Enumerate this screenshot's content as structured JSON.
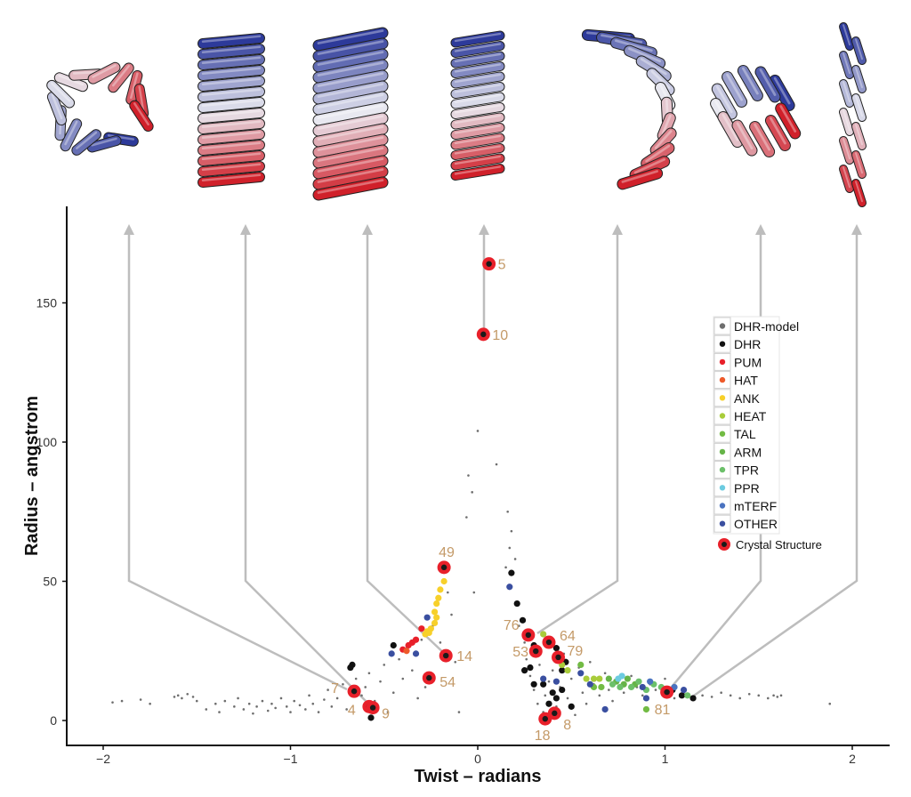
{
  "chart_data": {
    "type": "scatter",
    "xlabel": "Twist – radians",
    "ylabel": "Radius – angstrom",
    "xlim": [
      -2.2,
      2.2
    ],
    "ylim": [
      -8,
      185
    ],
    "xticks": [
      -2,
      -1,
      0,
      1,
      2
    ],
    "yticks": [
      0,
      50,
      100,
      150
    ],
    "grid": false,
    "legend_position": "right",
    "legend": [
      {
        "name": "DHR-model",
        "color": "#6e6e6e"
      },
      {
        "name": "DHR",
        "color": "#111111"
      },
      {
        "name": "PUM",
        "color": "#e8202a"
      },
      {
        "name": "HAT",
        "color": "#ee5a2a"
      },
      {
        "name": "ANK",
        "color": "#f7d02a"
      },
      {
        "name": "HEAT",
        "color": "#a9cc3a"
      },
      {
        "name": "TAL",
        "color": "#72bb44"
      },
      {
        "name": "ARM",
        "color": "#66b448"
      },
      {
        "name": "TPR",
        "color": "#6cc06a"
      },
      {
        "name": "PPR",
        "color": "#6ccbe0"
      },
      {
        "name": "mTERF",
        "color": "#4a73c0"
      },
      {
        "name": "OTHER",
        "color": "#3a4fa0"
      }
    ],
    "crystal_legend": "Crystal Structure",
    "series": [
      {
        "name": "DHR-model",
        "points": [
          [
            -1.95,
            6.5
          ],
          [
            -1.9,
            7
          ],
          [
            -1.8,
            7.5
          ],
          [
            -1.75,
            6
          ],
          [
            -1.62,
            8.5
          ],
          [
            -1.6,
            9
          ],
          [
            -1.58,
            8
          ],
          [
            -1.55,
            9.5
          ],
          [
            -1.52,
            8.5
          ],
          [
            -1.5,
            7
          ],
          [
            -1.45,
            4
          ],
          [
            -1.4,
            6
          ],
          [
            -1.38,
            3
          ],
          [
            -1.35,
            7
          ],
          [
            -1.3,
            5
          ],
          [
            -1.28,
            8
          ],
          [
            -1.25,
            4
          ],
          [
            -1.22,
            6
          ],
          [
            -1.2,
            2.5
          ],
          [
            -1.18,
            5
          ],
          [
            -1.15,
            7
          ],
          [
            -1.12,
            3.5
          ],
          [
            -1.1,
            6
          ],
          [
            -1.08,
            4.5
          ],
          [
            -1.05,
            8
          ],
          [
            -1.02,
            5
          ],
          [
            -1.0,
            3
          ],
          [
            -0.98,
            7
          ],
          [
            -0.95,
            5.5
          ],
          [
            -0.92,
            4
          ],
          [
            -0.9,
            9
          ],
          [
            -0.88,
            6
          ],
          [
            -0.85,
            3
          ],
          [
            -0.82,
            7.5
          ],
          [
            -0.8,
            11
          ],
          [
            -0.78,
            5
          ],
          [
            -0.75,
            8
          ],
          [
            -0.72,
            13
          ],
          [
            -0.7,
            4
          ],
          [
            -0.65,
            15
          ],
          [
            -0.62,
            9
          ],
          [
            -0.6,
            12
          ],
          [
            -0.58,
            17
          ],
          [
            -0.55,
            7
          ],
          [
            -0.52,
            14
          ],
          [
            -0.5,
            20
          ],
          [
            -0.48,
            3
          ],
          [
            -0.45,
            10
          ],
          [
            -0.42,
            22
          ],
          [
            -0.4,
            15
          ],
          [
            -0.38,
            26
          ],
          [
            -0.35,
            18
          ],
          [
            -0.32,
            8
          ],
          [
            -0.3,
            29
          ],
          [
            -0.28,
            12
          ],
          [
            -0.24,
            34
          ],
          [
            -0.2,
            28
          ],
          [
            -0.16,
            46
          ],
          [
            -0.14,
            38
          ],
          [
            -0.12,
            21
          ],
          [
            -0.1,
            3
          ],
          [
            0.0,
            104
          ],
          [
            -0.05,
            88
          ],
          [
            -0.03,
            82
          ],
          [
            -0.06,
            73
          ],
          [
            0.1,
            92
          ],
          [
            -0.02,
            46
          ],
          [
            0.16,
            75
          ],
          [
            0.18,
            68
          ],
          [
            0.17,
            62
          ],
          [
            0.2,
            58
          ],
          [
            0.15,
            55
          ],
          [
            0.22,
            34
          ],
          [
            0.25,
            28
          ],
          [
            0.26,
            22
          ],
          [
            0.28,
            16
          ],
          [
            0.3,
            11
          ],
          [
            0.32,
            6
          ],
          [
            0.33,
            20
          ],
          [
            0.35,
            3
          ],
          [
            0.36,
            9
          ],
          [
            0.38,
            14
          ],
          [
            0.4,
            18
          ],
          [
            0.42,
            5
          ],
          [
            0.44,
            12
          ],
          [
            0.46,
            24
          ],
          [
            0.48,
            8
          ],
          [
            0.5,
            15
          ],
          [
            0.52,
            2
          ],
          [
            0.54,
            19
          ],
          [
            0.56,
            10
          ],
          [
            0.58,
            6
          ],
          [
            0.6,
            21
          ],
          [
            0.62,
            13
          ],
          [
            0.65,
            9
          ],
          [
            0.68,
            17
          ],
          [
            0.7,
            11
          ],
          [
            0.72,
            7
          ],
          [
            0.75,
            14
          ],
          [
            0.78,
            10
          ],
          [
            0.82,
            16
          ],
          [
            0.85,
            12
          ],
          [
            0.88,
            9
          ],
          [
            0.92,
            13
          ],
          [
            0.95,
            11
          ],
          [
            1.0,
            15
          ],
          [
            1.05,
            8
          ],
          [
            1.1,
            10
          ],
          [
            1.2,
            9
          ],
          [
            1.25,
            8.5
          ],
          [
            1.3,
            10
          ],
          [
            1.35,
            9
          ],
          [
            1.4,
            8
          ],
          [
            1.45,
            9.5
          ],
          [
            1.5,
            9
          ],
          [
            1.55,
            8
          ],
          [
            1.58,
            9
          ],
          [
            1.6,
            8.5
          ],
          [
            1.62,
            9
          ],
          [
            1.88,
            6
          ]
        ]
      },
      {
        "name": "DHR",
        "points": [
          [
            -0.67,
            20
          ],
          [
            -0.68,
            19
          ],
          [
            -0.45,
            27
          ],
          [
            -0.57,
            1
          ],
          [
            0.18,
            53
          ],
          [
            0.21,
            42
          ],
          [
            0.24,
            36
          ],
          [
            0.28,
            19
          ],
          [
            0.25,
            18
          ],
          [
            0.3,
            13
          ],
          [
            0.38,
            29
          ],
          [
            0.35,
            13
          ],
          [
            0.4,
            10
          ],
          [
            0.38,
            6
          ],
          [
            0.45,
            11
          ],
          [
            0.42,
            8
          ],
          [
            0.5,
            5
          ],
          [
            0.3,
            27
          ],
          [
            0.45,
            18
          ],
          [
            1.04,
            11
          ],
          [
            1.09,
            9
          ],
          [
            1.15,
            8
          ],
          [
            0.42,
            26
          ],
          [
            0.47,
            21
          ]
        ]
      },
      {
        "name": "PUM",
        "points": [
          [
            -0.33,
            29
          ],
          [
            -0.35,
            28
          ],
          [
            -0.37,
            27
          ],
          [
            -0.4,
            25.5
          ],
          [
            -0.3,
            33
          ]
        ]
      },
      {
        "name": "HAT",
        "points": [
          [
            -0.38,
            25
          ]
        ]
      },
      {
        "name": "ANK",
        "points": [
          [
            -0.18,
            50
          ],
          [
            -0.2,
            47
          ],
          [
            -0.21,
            44
          ],
          [
            -0.22,
            42
          ],
          [
            -0.23,
            39
          ],
          [
            -0.22,
            37
          ],
          [
            -0.23,
            35
          ],
          [
            -0.25,
            33
          ],
          [
            -0.27,
            32
          ],
          [
            -0.28,
            31
          ],
          [
            -0.26,
            31.5
          ]
        ]
      },
      {
        "name": "HEAT",
        "points": [
          [
            0.35,
            31
          ],
          [
            0.45,
            20
          ],
          [
            0.48,
            18
          ],
          [
            0.58,
            15
          ],
          [
            0.62,
            15
          ],
          [
            0.65,
            15
          ]
        ]
      },
      {
        "name": "TAL",
        "points": [
          [
            0.55,
            20
          ],
          [
            0.62,
            12
          ],
          [
            0.66,
            12
          ],
          [
            0.9,
            4
          ]
        ]
      },
      {
        "name": "ARM",
        "points": [
          [
            0.7,
            15
          ],
          [
            0.74,
            14
          ],
          [
            0.78,
            13
          ],
          [
            0.8,
            15
          ],
          [
            0.84,
            13
          ]
        ]
      },
      {
        "name": "TPR",
        "points": [
          [
            0.72,
            13
          ],
          [
            0.76,
            12
          ],
          [
            0.82,
            12
          ],
          [
            0.86,
            14
          ],
          [
            0.9,
            11
          ],
          [
            0.94,
            13
          ],
          [
            0.98,
            12
          ],
          [
            1.12,
            9
          ]
        ]
      },
      {
        "name": "PPR",
        "points": [
          [
            0.75,
            15
          ],
          [
            0.77,
            16
          ]
        ]
      },
      {
        "name": "mTERF",
        "points": [
          [
            0.92,
            14
          ],
          [
            1.05,
            12
          ]
        ]
      },
      {
        "name": "OTHER",
        "points": [
          [
            -0.27,
            37
          ],
          [
            -0.33,
            24
          ],
          [
            -0.46,
            24
          ],
          [
            0.17,
            48
          ],
          [
            0.35,
            15
          ],
          [
            0.55,
            17
          ],
          [
            0.6,
            13
          ],
          [
            0.42,
            14
          ],
          [
            0.68,
            4
          ],
          [
            0.88,
            12
          ],
          [
            0.9,
            8
          ],
          [
            1.1,
            11
          ]
        ]
      }
    ],
    "crystal_structures": [
      {
        "label": "5",
        "x": 0.06,
        "y": 164
      },
      {
        "label": "10",
        "x": 0.03,
        "y": 138.7
      },
      {
        "label": "49",
        "x": -0.18,
        "y": 55
      },
      {
        "label": "14",
        "x": -0.17,
        "y": 23.3
      },
      {
        "label": "54",
        "x": -0.26,
        "y": 15.3
      },
      {
        "label": "7",
        "x": -0.66,
        "y": 10.5
      },
      {
        "label": "4",
        "x": -0.58,
        "y": 5
      },
      {
        "label": "9",
        "x": -0.56,
        "y": 4.6
      },
      {
        "label": "76",
        "x": 0.27,
        "y": 30.7
      },
      {
        "label": "64",
        "x": 0.38,
        "y": 28.1
      },
      {
        "label": "53",
        "x": 0.31,
        "y": 24.9
      },
      {
        "label": "79",
        "x": 0.43,
        "y": 22.7
      },
      {
        "label": "18",
        "x": 0.36,
        "y": 0.6
      },
      {
        "label": "8",
        "x": 0.41,
        "y": 2.6
      },
      {
        "label": "81",
        "x": 1.01,
        "y": 10.2
      }
    ]
  }
}
